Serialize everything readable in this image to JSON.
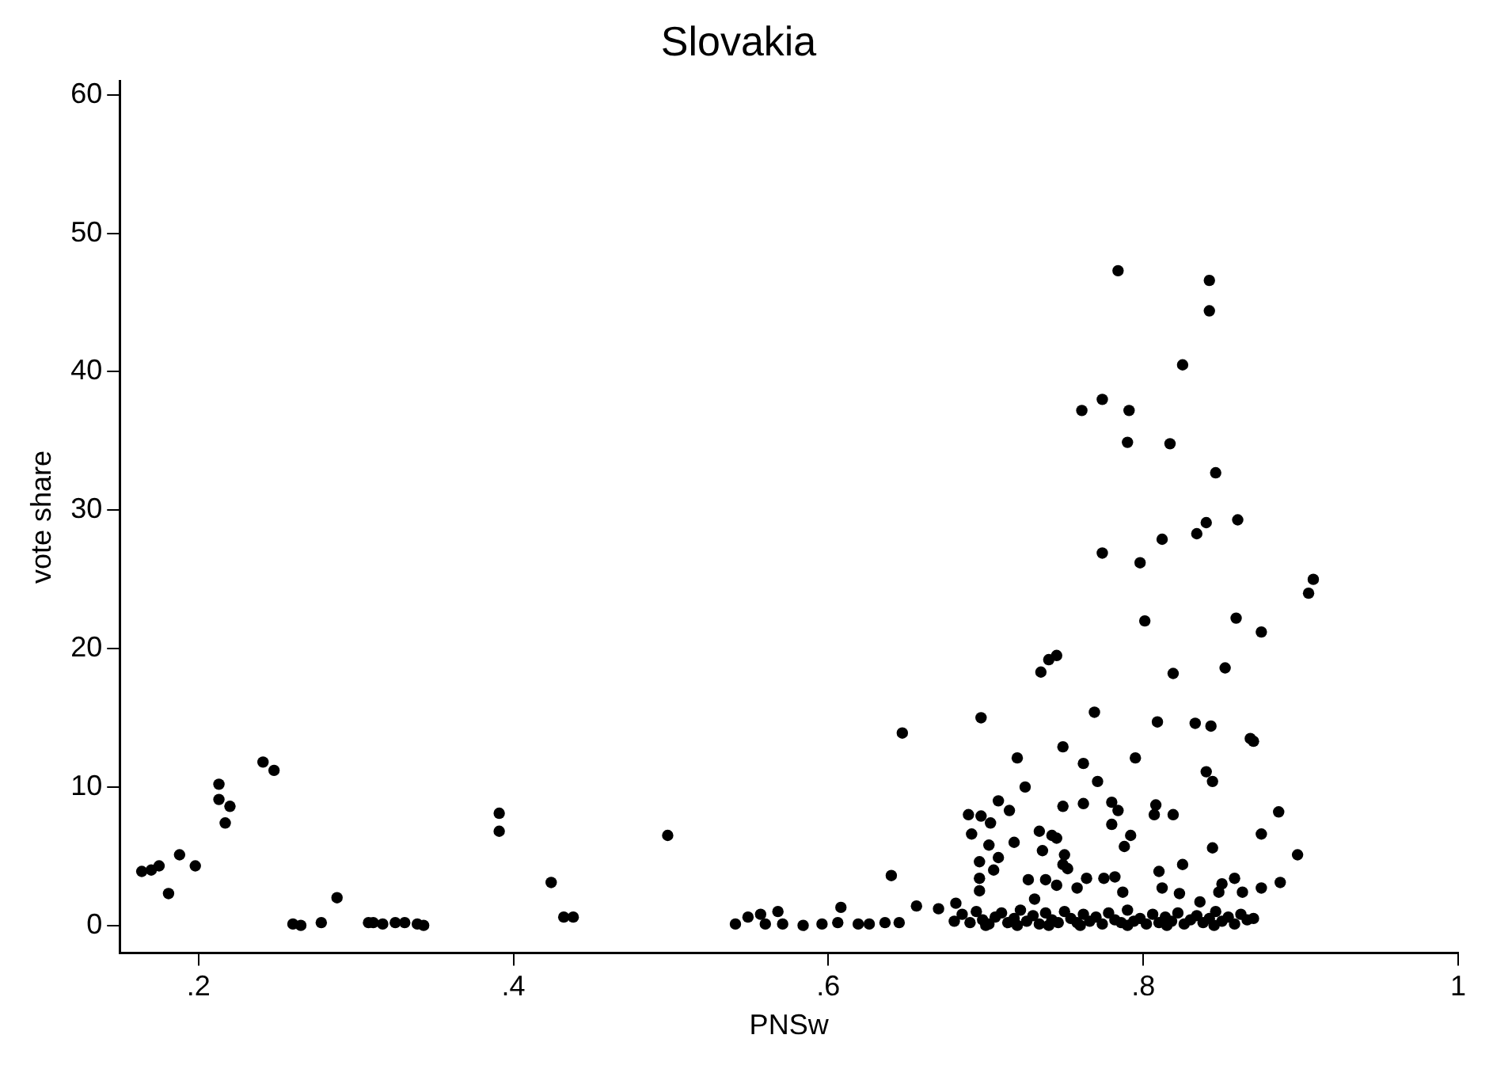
{
  "chart_data": {
    "type": "scatter",
    "title": "Slovakia",
    "xlabel": "PNSw",
    "ylabel": "vote share",
    "marker": "circle",
    "grid": false,
    "legend": false,
    "xlim": [
      0.15,
      1
    ],
    "ylim": [
      -2,
      61
    ],
    "xticks": [
      {
        "value": 0.2,
        "label": ".2"
      },
      {
        "value": 0.4,
        "label": ".4"
      },
      {
        "value": 0.6,
        "label": ".6"
      },
      {
        "value": 0.8,
        "label": ".8"
      },
      1
    ],
    "yticks": [
      0,
      10,
      20,
      30,
      40,
      50,
      60
    ],
    "series": [
      {
        "color": "#000000",
        "x": [
          0.164,
          0.17,
          0.175,
          0.181,
          0.188,
          0.198,
          0.213,
          0.213,
          0.217,
          0.22,
          0.241,
          0.248,
          0.26,
          0.265,
          0.278,
          0.288,
          0.308,
          0.311,
          0.317,
          0.325,
          0.331,
          0.339,
          0.343,
          0.391,
          0.391,
          0.424,
          0.432,
          0.438,
          0.498,
          0.541,
          0.549,
          0.557,
          0.56,
          0.568,
          0.571,
          0.584,
          0.596,
          0.606,
          0.608,
          0.619,
          0.626,
          0.636,
          0.64,
          0.645,
          0.647,
          0.656,
          0.67,
          0.681,
          0.697,
          0.689,
          0.697,
          0.703,
          0.691,
          0.702,
          0.708,
          0.715,
          0.72,
          0.725,
          0.718,
          0.696,
          0.708,
          0.705,
          0.696,
          0.696,
          0.727,
          0.734,
          0.736,
          0.738,
          0.731,
          0.769,
          0.809,
          0.833,
          0.843,
          0.868,
          0.87,
          0.749,
          0.762,
          0.795,
          0.771,
          0.84,
          0.844,
          0.749,
          0.762,
          0.78,
          0.784,
          0.78,
          0.792,
          0.788,
          0.808,
          0.807,
          0.819,
          0.886,
          0.875,
          0.844,
          0.898,
          0.742,
          0.745,
          0.75,
          0.749,
          0.752,
          0.825,
          0.81,
          0.764,
          0.775,
          0.782,
          0.787,
          0.812,
          0.823,
          0.836,
          0.85,
          0.858,
          0.863,
          0.848,
          0.875,
          0.887,
          0.758,
          0.745,
          0.784,
          0.842,
          0.842,
          0.825,
          0.761,
          0.774,
          0.791,
          0.79,
          0.817,
          0.846,
          0.86,
          0.84,
          0.834,
          0.812,
          0.774,
          0.798,
          0.908,
          0.905,
          0.859,
          0.801,
          0.875,
          0.735,
          0.74,
          0.745,
          0.852,
          0.819,
          0.68,
          0.685,
          0.69,
          0.694,
          0.698,
          0.702,
          0.706,
          0.71,
          0.714,
          0.718,
          0.722,
          0.726,
          0.73,
          0.734,
          0.738,
          0.742,
          0.746,
          0.75,
          0.754,
          0.758,
          0.762,
          0.766,
          0.77,
          0.774,
          0.778,
          0.782,
          0.786,
          0.79,
          0.794,
          0.798,
          0.802,
          0.806,
          0.81,
          0.814,
          0.818,
          0.822,
          0.826,
          0.83,
          0.834,
          0.838,
          0.842,
          0.846,
          0.85,
          0.854,
          0.858,
          0.862,
          0.866,
          0.87,
          0.7,
          0.72,
          0.74,
          0.76,
          0.79,
          0.815,
          0.845
        ],
        "values": [
          3.9,
          4.0,
          4.3,
          2.3,
          5.1,
          4.3,
          10.2,
          9.1,
          7.4,
          8.6,
          11.8,
          11.2,
          0.1,
          0,
          0.2,
          2.0,
          0.2,
          0.2,
          0.1,
          0.2,
          0.2,
          0.1,
          0,
          8.1,
          6.8,
          3.1,
          0.6,
          0.6,
          6.5,
          0.1,
          0.6,
          0.8,
          0.1,
          1.0,
          0.1,
          0,
          0.1,
          0.2,
          1.3,
          0.1,
          0.1,
          0.2,
          3.6,
          0.2,
          13.9,
          1.4,
          1.2,
          1.6,
          15.0,
          8.0,
          7.9,
          7.4,
          6.6,
          5.8,
          9.0,
          8.3,
          12.1,
          10.0,
          6.0,
          4.6,
          4.9,
          4.0,
          3.4,
          2.5,
          3.3,
          6.8,
          5.4,
          3.3,
          1.9,
          15.4,
          14.7,
          14.6,
          14.4,
          13.5,
          13.3,
          12.9,
          11.7,
          12.1,
          10.4,
          11.1,
          10.4,
          8.6,
          8.8,
          8.9,
          8.3,
          7.3,
          6.5,
          5.7,
          8.7,
          8.0,
          8.0,
          8.2,
          6.6,
          5.6,
          5.1,
          6.5,
          6.3,
          5.1,
          4.4,
          4.1,
          4.4,
          3.9,
          3.4,
          3.4,
          3.5,
          2.4,
          2.7,
          2.3,
          1.7,
          3.0,
          3.4,
          2.4,
          2.4,
          2.7,
          3.1,
          2.7,
          2.9,
          47.3,
          46.6,
          44.4,
          40.5,
          37.2,
          38.0,
          37.2,
          34.9,
          34.8,
          32.7,
          29.3,
          29.1,
          28.3,
          27.9,
          26.9,
          26.2,
          25.0,
          24.0,
          22.2,
          22.0,
          21.2,
          18.3,
          19.2,
          19.5,
          18.6,
          18.2,
          0.3,
          0.8,
          0.2,
          1.0,
          0.4,
          0.1,
          0.6,
          0.9,
          0.2,
          0.5,
          1.1,
          0.3,
          0.7,
          0.1,
          0.9,
          0.4,
          0.2,
          1.0,
          0.5,
          0.2,
          0.8,
          0.3,
          0.6,
          0.1,
          0.9,
          0.4,
          0.2,
          1.1,
          0.3,
          0.5,
          0.1,
          0.8,
          0.2,
          0.6,
          0.3,
          0.9,
          0.1,
          0.4,
          0.7,
          0.2,
          0.5,
          1.0,
          0.3,
          0.6,
          0.1,
          0.8,
          0.4,
          0.5,
          0.0,
          0.0,
          0.0,
          0.0,
          0.0,
          0.0,
          0.0
        ]
      }
    ]
  }
}
